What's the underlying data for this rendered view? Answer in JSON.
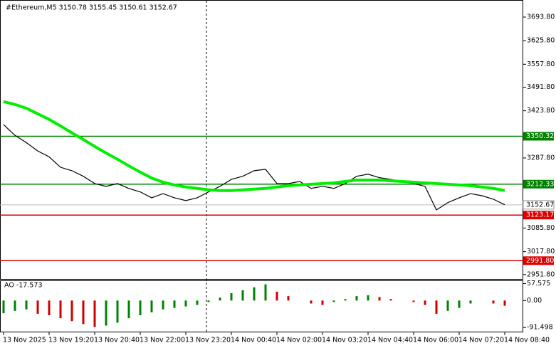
{
  "chart_data": [
    {
      "type": "line",
      "title": "#Ethereum,M5  3150.78 3155.45 3150.61 3152.67",
      "categories": [
        "13 Nov 2025",
        null,
        null,
        null,
        "13 Nov 19:20",
        null,
        null,
        null,
        "13 Nov 20:40",
        null,
        null,
        null,
        "13 Nov 22:00",
        null,
        null,
        null,
        "13 Nov 23:20",
        null,
        null,
        null,
        "14 Nov 00:40",
        null,
        null,
        null,
        "14 Nov 02:00",
        null,
        null,
        null,
        "14 Nov 03:20",
        null,
        null,
        null,
        "14 Nov 04:40",
        null,
        null,
        null,
        "14 Nov 06:00",
        null,
        null,
        null,
        "14 Nov 07:20",
        null,
        null,
        null,
        "14 Nov 08:40"
      ],
      "series": [
        {
          "color": "#000000",
          "values": [
            3384,
            3353,
            3332,
            3308,
            3291,
            3261,
            3251,
            3235,
            3214,
            3206,
            3214,
            3200,
            3190,
            3173,
            3185,
            3173,
            3165,
            3173,
            3190,
            3206,
            3226,
            3235,
            3251,
            3255,
            3214,
            3214,
            3220,
            3200,
            3206,
            3200,
            3214,
            3235,
            3241,
            3231,
            3226,
            3220,
            3214,
            3206,
            3138,
            3159,
            3173,
            3185,
            3179,
            3169,
            3153
          ]
        },
        {
          "color": "#00ee00",
          "values": [
            3450,
            3442,
            3431,
            3415,
            3399,
            3380,
            3360,
            3341,
            3321,
            3302,
            3284,
            3265,
            3247,
            3230,
            3218,
            3210,
            3204,
            3200,
            3196,
            3194,
            3194,
            3196,
            3198,
            3200,
            3204,
            3208,
            3210,
            3212,
            3214,
            3216,
            3220,
            3224,
            3224,
            3224,
            3222,
            3220,
            3218,
            3216,
            3214,
            3212,
            3210,
            3208,
            3204,
            3200,
            3194
          ]
        }
      ],
      "ylim": [
        2937,
        3743
      ],
      "yticks": [
        {
          "value": 3693.8,
          "label": "3693.80"
        },
        {
          "value": 3625.8,
          "label": "3625.80"
        },
        {
          "value": 3557.8,
          "label": "3557.80"
        },
        {
          "value": 3491.8,
          "label": "3491.80"
        },
        {
          "value": 3423.8,
          "label": "3423.80"
        },
        {
          "value": 3287.8,
          "label": "3287.80"
        },
        {
          "value": 3085.8,
          "label": "3085.80"
        },
        {
          "value": 3017.8,
          "label": "3017.80"
        },
        {
          "value": 2951.8,
          "label": "2951.80"
        }
      ],
      "levels": [
        {
          "value": 3350.32,
          "label": "3350.32",
          "color": "#008000"
        },
        {
          "value": 3212.33,
          "label": "3212.33",
          "color": "#008000"
        },
        {
          "value": 3123.17,
          "label": "3123.17",
          "color": "#dd0000"
        },
        {
          "value": 2991.8,
          "label": "2991.80",
          "color": "#dd0000"
        }
      ],
      "last_price": {
        "value": 3152.67,
        "label": "3152.67"
      }
    },
    {
      "type": "bar",
      "title": "AO -17.573",
      "values": [
        -43,
        -35,
        -30,
        -45,
        -50,
        -60,
        -70,
        -80,
        -90,
        -85,
        -75,
        -60,
        -50,
        -40,
        -30,
        -25,
        -20,
        -15,
        -5,
        10,
        25,
        35,
        45,
        55,
        30,
        15,
        0,
        -10,
        -15,
        -5,
        5,
        15,
        18,
        12,
        5,
        0,
        -5,
        -15,
        -45,
        -35,
        -25,
        -10,
        0,
        -10,
        -17.573
      ],
      "up_color": "#008000",
      "down_color": "#cc0000",
      "ylim": [
        -108,
        66
      ],
      "yticks": [
        57.575,
        {
          "value": 0,
          "label": "0.00"
        },
        -91.498
      ]
    }
  ]
}
